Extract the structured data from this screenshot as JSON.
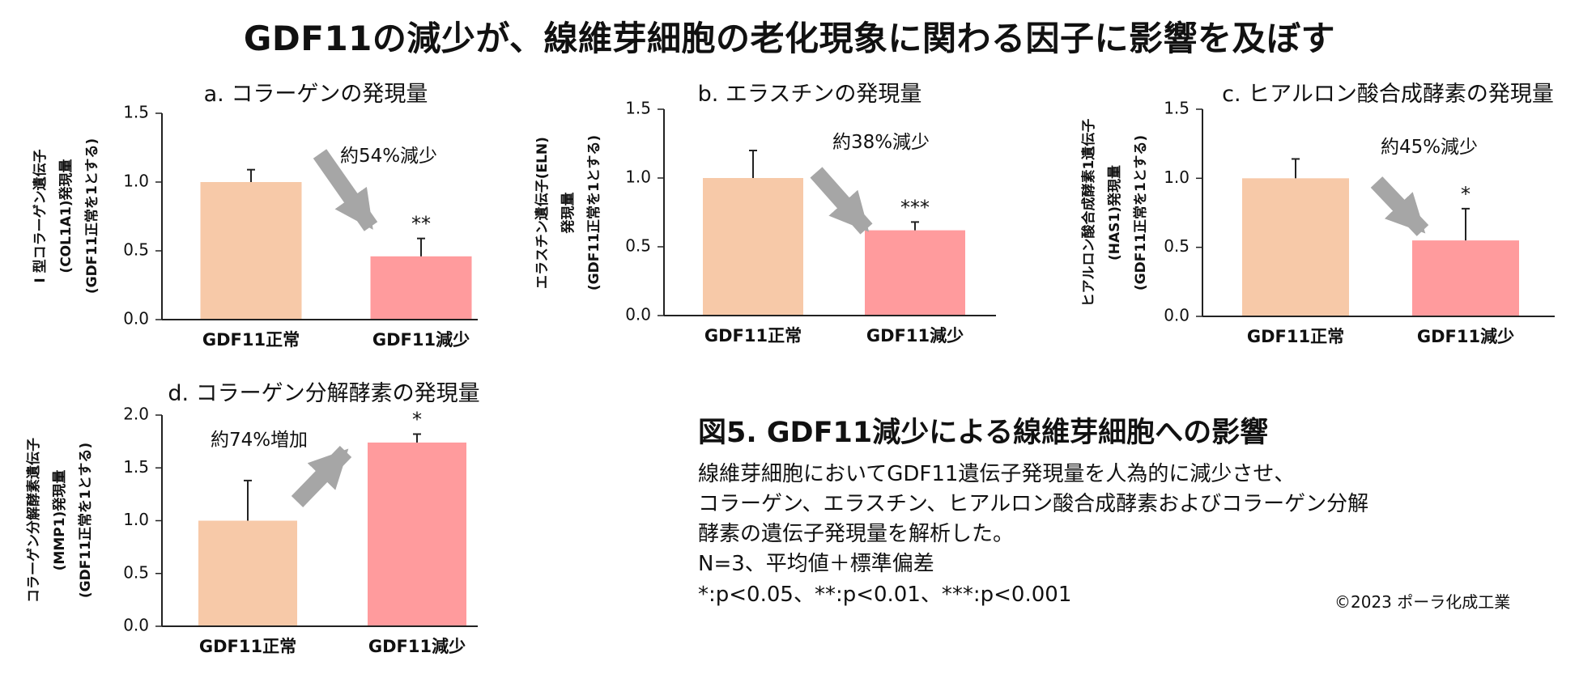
{
  "main_title": "GDF11の減少が、線維芽細胞の老化現象に関わる因子に影響を及ぼす",
  "colors": {
    "normal_bar": "#F7C9A8",
    "reduced_bar": "#FF9B9D",
    "arrow": "#A6A6A6",
    "axis": "#222222"
  },
  "chart_data": [
    {
      "type": "bar",
      "title": "a. コラーゲンの発現量",
      "ylabel_lines": [
        "I 型コラーゲン遺伝子",
        "(COL1A1)発現量",
        "(GDF11正常を1とする)"
      ],
      "categories": [
        "GDF11正常",
        "GDF11減少"
      ],
      "values": [
        1.0,
        0.46
      ],
      "errors": [
        0.09,
        0.13
      ],
      "ylim": [
        0,
        1.5
      ],
      "yticks": [
        "0.0",
        "0.5",
        "1.0",
        "1.5"
      ],
      "significance": [
        "",
        "**"
      ],
      "annotation": "約54%減少",
      "arrow": "down"
    },
    {
      "type": "bar",
      "title": "b. エラスチンの発現量",
      "ylabel_lines": [
        "エラスチン遺伝子(ELN)",
        "発現量",
        "(GDF11正常を1とする)"
      ],
      "categories": [
        "GDF11正常",
        "GDF11減少"
      ],
      "values": [
        1.0,
        0.62
      ],
      "errors": [
        0.2,
        0.06
      ],
      "ylim": [
        0,
        1.5
      ],
      "yticks": [
        "0.0",
        "0.5",
        "1.0",
        "1.5"
      ],
      "significance": [
        "",
        "***"
      ],
      "annotation": "約38%減少",
      "arrow": "down"
    },
    {
      "type": "bar",
      "title": "c. ヒアルロン酸合成酵素の発現量",
      "ylabel_lines": [
        "ヒアルロン酸合成酵素1遺伝子",
        "(HAS1)発現量",
        "(GDF11正常を1とする)"
      ],
      "categories": [
        "GDF11正常",
        "GDF11減少"
      ],
      "values": [
        1.0,
        0.55
      ],
      "errors": [
        0.14,
        0.23
      ],
      "ylim": [
        0,
        1.5
      ],
      "yticks": [
        "0.0",
        "0.5",
        "1.0",
        "1.5"
      ],
      "significance": [
        "",
        "*"
      ],
      "annotation": "約45%減少",
      "arrow": "down"
    },
    {
      "type": "bar",
      "title": "d. コラーゲン分解酵素の発現量",
      "ylabel_lines": [
        "コラーゲン分解酵素遺伝子",
        "(MMP1)発現量",
        "(GDF11正常を1とする)"
      ],
      "categories": [
        "GDF11正常",
        "GDF11減少"
      ],
      "values": [
        1.0,
        1.74
      ],
      "errors": [
        0.38,
        0.08
      ],
      "ylim": [
        0,
        2.0
      ],
      "yticks": [
        "0.0",
        "0.5",
        "1.0",
        "1.5",
        "2.0"
      ],
      "significance": [
        "",
        "*"
      ],
      "annotation": "約74%増加",
      "arrow": "up"
    }
  ],
  "figure_caption": "図5. GDF11減少による線維芽細胞への影響",
  "description_lines": [
    "線維芽細胞においてGDF11遺伝子発現量を人為的に減少させ、",
    "コラーゲン、エラスチン、ヒアルロン酸合成酵素およびコラーゲン分解",
    "酵素の遺伝子発現量を解析した。",
    "N=3、平均値＋標準偏差",
    "*:p<0.05、**:p<0.01、***:p<0.001"
  ],
  "copyright": "©2023 ポーラ化成工業"
}
